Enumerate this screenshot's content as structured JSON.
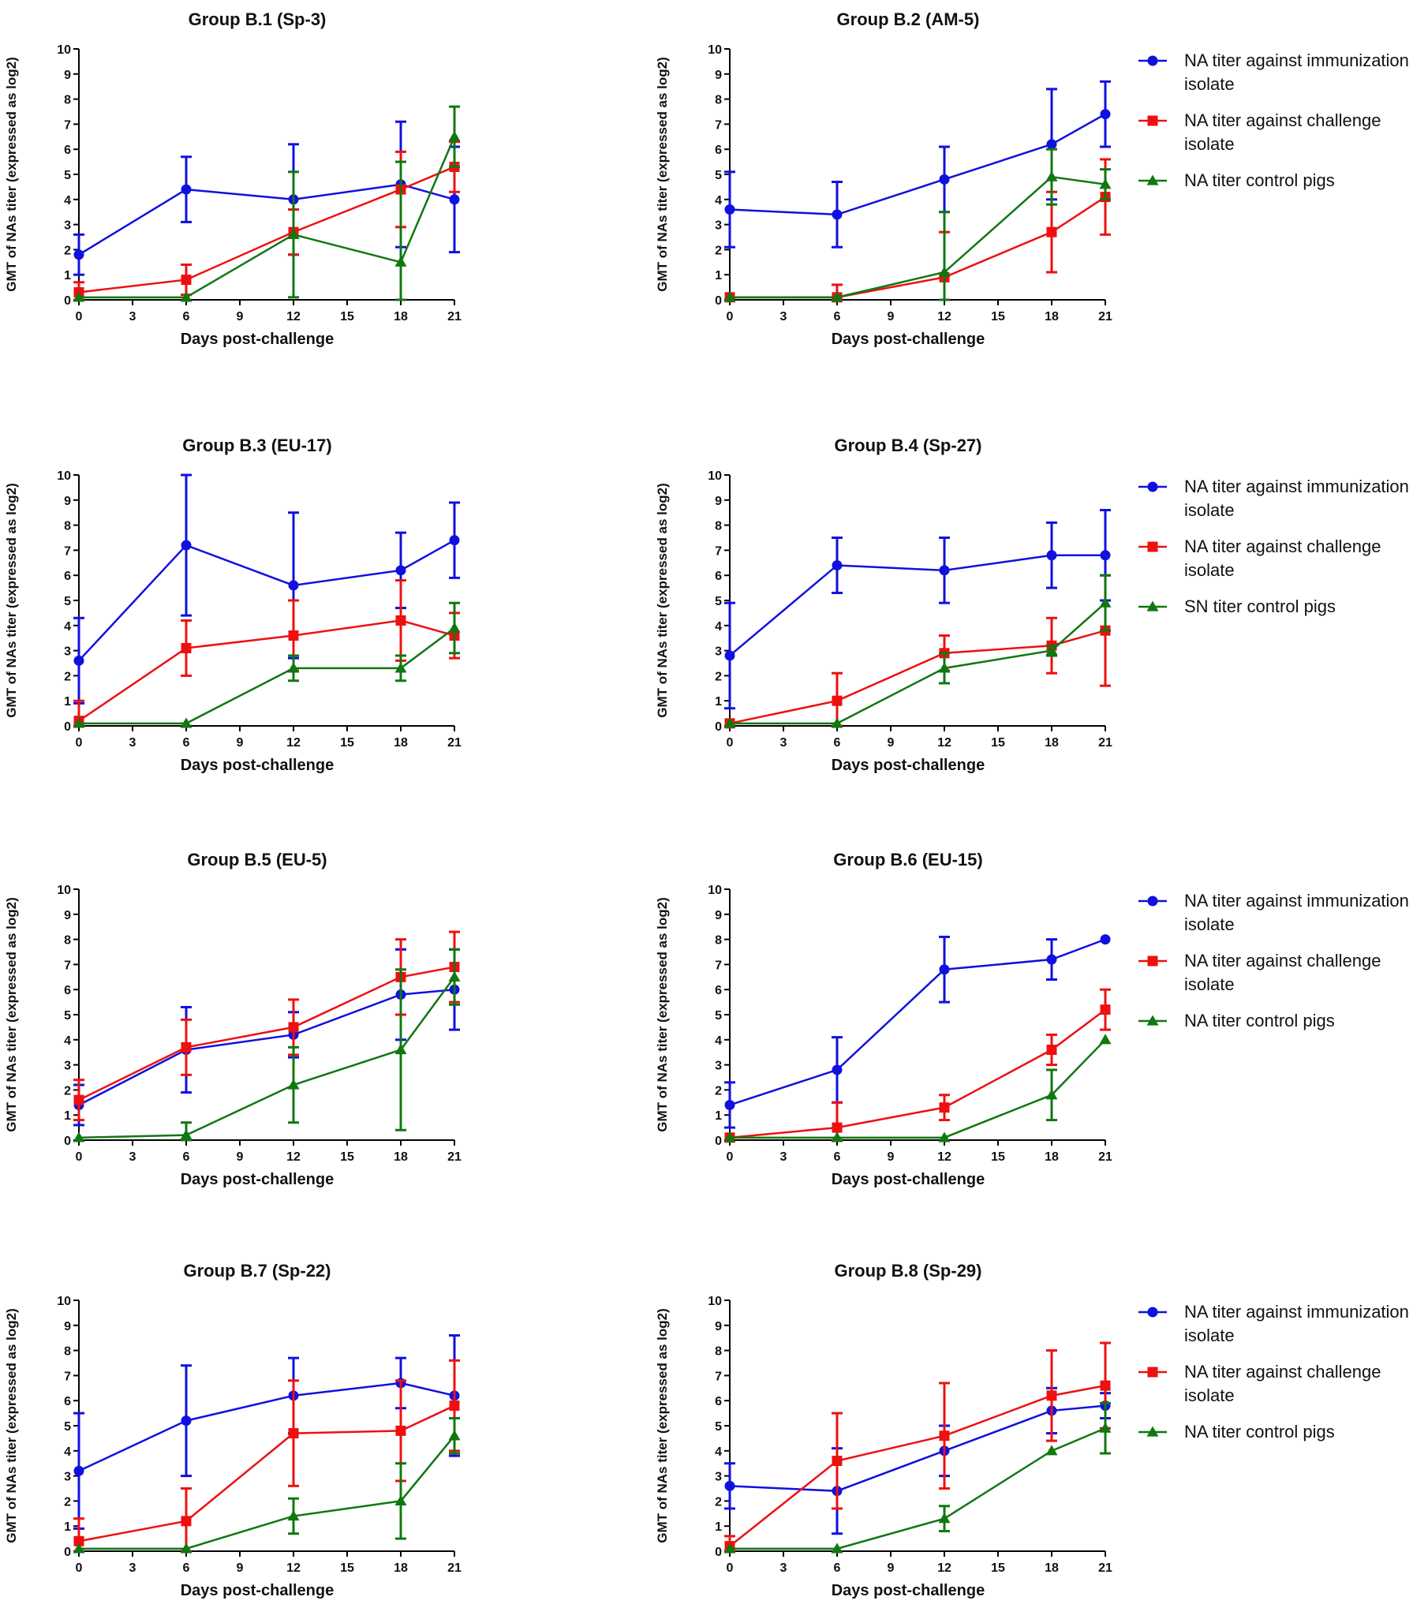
{
  "chart_data": [
    {
      "type": "line",
      "title": "Group B.1 (Sp-3)",
      "xlabel": "Days post-challenge",
      "ylabel": "GMT of NAs titer (expressed as log2)",
      "xlim": [
        0,
        21
      ],
      "ylim": [
        0,
        10
      ],
      "xticks": [
        0,
        3,
        6,
        9,
        12,
        15,
        18,
        21
      ],
      "yticks": [
        0,
        1,
        2,
        3,
        4,
        5,
        6,
        7,
        8,
        9,
        10
      ],
      "x": [
        0,
        6,
        12,
        18,
        21
      ],
      "legend": null,
      "series": [
        {
          "name": "immunization",
          "color": "#1010e0",
          "marker": "circle",
          "values": [
            1.8,
            4.4,
            4.0,
            4.6,
            4.0
          ],
          "errors": [
            0.8,
            1.3,
            2.2,
            2.5,
            2.1
          ]
        },
        {
          "name": "challenge",
          "color": "#ee1010",
          "marker": "square",
          "values": [
            0.3,
            0.8,
            2.7,
            4.4,
            5.3
          ],
          "errors": [
            0.4,
            0.6,
            0.9,
            1.5,
            1.0
          ]
        },
        {
          "name": "control",
          "color": "#117711",
          "marker": "triangle",
          "values": [
            0.1,
            0.1,
            2.6,
            1.5,
            6.5
          ],
          "errors": [
            0.0,
            0.0,
            2.5,
            4.0,
            1.2
          ]
        }
      ]
    },
    {
      "type": "line",
      "title": "Group B.2 (AM-5)",
      "xlabel": "Days post-challenge",
      "ylabel": "GMT of NAs titer (expressed as log2)",
      "xlim": [
        0,
        21
      ],
      "ylim": [
        0,
        10
      ],
      "xticks": [
        0,
        3,
        6,
        9,
        12,
        15,
        18,
        21
      ],
      "yticks": [
        0,
        1,
        2,
        3,
        4,
        5,
        6,
        7,
        8,
        9,
        10
      ],
      "x": [
        0,
        6,
        12,
        18,
        21
      ],
      "legend": [
        "NA titer against immunization isolate",
        "NA titer against challenge isolate",
        "NA titer control pigs"
      ],
      "series": [
        {
          "name": "NA titer against immunization isolate",
          "color": "#1010e0",
          "marker": "circle",
          "values": [
            3.6,
            3.4,
            4.8,
            6.2,
            7.4
          ],
          "errors": [
            1.5,
            1.3,
            1.3,
            2.2,
            1.3
          ]
        },
        {
          "name": "NA titer against challenge isolate",
          "color": "#ee1010",
          "marker": "square",
          "values": [
            0.1,
            0.1,
            0.9,
            2.7,
            4.1
          ],
          "errors": [
            0.0,
            0.5,
            1.8,
            1.6,
            1.5
          ]
        },
        {
          "name": "NA titer control pigs",
          "color": "#117711",
          "marker": "triangle",
          "values": [
            0.1,
            0.1,
            1.1,
            4.9,
            4.6
          ],
          "errors": [
            0.0,
            0.0,
            2.4,
            1.1,
            0.6
          ]
        }
      ]
    },
    {
      "type": "line",
      "title": "Group B.3 (EU-17)",
      "xlabel": "Days post-challenge",
      "ylabel": "GMT of NAs titer (expressed as log2)",
      "xlim": [
        0,
        21
      ],
      "ylim": [
        0,
        10
      ],
      "xticks": [
        0,
        3,
        6,
        9,
        12,
        15,
        18,
        21
      ],
      "yticks": [
        0,
        1,
        2,
        3,
        4,
        5,
        6,
        7,
        8,
        9,
        10
      ],
      "x": [
        0,
        6,
        12,
        18,
        21
      ],
      "legend": null,
      "series": [
        {
          "name": "immunization",
          "color": "#1010e0",
          "marker": "circle",
          "values": [
            2.6,
            7.2,
            5.6,
            6.2,
            7.4
          ],
          "errors": [
            1.7,
            2.8,
            2.9,
            1.5,
            1.5
          ]
        },
        {
          "name": "challenge",
          "color": "#ee1010",
          "marker": "square",
          "values": [
            0.2,
            3.1,
            3.6,
            4.2,
            3.6
          ],
          "errors": [
            0.8,
            1.1,
            1.4,
            1.6,
            0.9
          ]
        },
        {
          "name": "control",
          "color": "#117711",
          "marker": "triangle",
          "values": [
            0.1,
            0.1,
            2.3,
            2.3,
            3.9
          ],
          "errors": [
            0.0,
            0.0,
            0.5,
            0.5,
            1.0
          ]
        }
      ]
    },
    {
      "type": "line",
      "title": "Group B.4 (Sp-27)",
      "xlabel": "Days post-challenge",
      "ylabel": "GMT of NAs titer (expressed as log2)",
      "xlim": [
        0,
        21
      ],
      "ylim": [
        0,
        10
      ],
      "xticks": [
        0,
        3,
        6,
        9,
        12,
        15,
        18,
        21
      ],
      "yticks": [
        0,
        1,
        2,
        3,
        4,
        5,
        6,
        7,
        8,
        9,
        10
      ],
      "x": [
        0,
        6,
        12,
        18,
        21
      ],
      "legend": [
        "NA titer against immunization isolate",
        "NA titer against challenge isolate",
        "SN titer control pigs"
      ],
      "series": [
        {
          "name": "NA titer against immunization isolate",
          "color": "#1010e0",
          "marker": "circle",
          "values": [
            2.8,
            6.4,
            6.2,
            6.8,
            6.8
          ],
          "errors": [
            2.1,
            1.1,
            1.3,
            1.3,
            1.8
          ]
        },
        {
          "name": "NA titer against challenge isolate",
          "color": "#ee1010",
          "marker": "square",
          "values": [
            0.1,
            1.0,
            2.9,
            3.2,
            3.8
          ],
          "errors": [
            0.0,
            1.1,
            0.7,
            1.1,
            2.2
          ]
        },
        {
          "name": "SN titer control pigs",
          "color": "#117711",
          "marker": "triangle",
          "values": [
            0.1,
            0.1,
            2.3,
            3.0,
            4.9
          ],
          "errors": [
            0.0,
            0.0,
            0.6,
            0.2,
            1.1
          ]
        }
      ]
    },
    {
      "type": "line",
      "title": "Group B.5 (EU-5)",
      "xlabel": "Days post-challenge",
      "ylabel": "GMT of NAs titer (expressed as log2)",
      "xlim": [
        0,
        21
      ],
      "ylim": [
        0,
        10
      ],
      "xticks": [
        0,
        3,
        6,
        9,
        12,
        15,
        18,
        21
      ],
      "yticks": [
        0,
        1,
        2,
        3,
        4,
        5,
        6,
        7,
        8,
        9,
        10
      ],
      "x": [
        0,
        6,
        12,
        18,
        21
      ],
      "legend": null,
      "series": [
        {
          "name": "immunization",
          "color": "#1010e0",
          "marker": "circle",
          "values": [
            1.4,
            3.6,
            4.2,
            5.8,
            6.0
          ],
          "errors": [
            0.8,
            1.7,
            0.9,
            1.8,
            1.6
          ]
        },
        {
          "name": "challenge",
          "color": "#ee1010",
          "marker": "square",
          "values": [
            1.6,
            3.7,
            4.5,
            6.5,
            6.9
          ],
          "errors": [
            0.8,
            1.1,
            1.1,
            1.5,
            1.4
          ]
        },
        {
          "name": "control",
          "color": "#117711",
          "marker": "triangle",
          "values": [
            0.1,
            0.2,
            2.2,
            3.6,
            6.5
          ],
          "errors": [
            0.0,
            0.5,
            1.5,
            3.2,
            1.1
          ]
        }
      ]
    },
    {
      "type": "line",
      "title": "Group B.6 (EU-15)",
      "xlabel": "Days post-challenge",
      "ylabel": "GMT of NAs titer (expressed as log2)",
      "xlim": [
        0,
        21
      ],
      "ylim": [
        0,
        10
      ],
      "xticks": [
        0,
        3,
        6,
        9,
        12,
        15,
        18,
        21
      ],
      "yticks": [
        0,
        1,
        2,
        3,
        4,
        5,
        6,
        7,
        8,
        9,
        10
      ],
      "x": [
        0,
        6,
        12,
        18,
        21
      ],
      "legend": [
        "NA titer against immunization isolate",
        "NA titer against challenge isolate",
        "NA titer control pigs"
      ],
      "series": [
        {
          "name": "NA titer against immunization isolate",
          "color": "#1010e0",
          "marker": "circle",
          "values": [
            1.4,
            2.8,
            6.8,
            7.2,
            8.0
          ],
          "errors": [
            0.9,
            1.3,
            1.3,
            0.8,
            0.0
          ]
        },
        {
          "name": "NA titer against challenge isolate",
          "color": "#ee1010",
          "marker": "square",
          "values": [
            0.1,
            0.5,
            1.3,
            3.6,
            5.2
          ],
          "errors": [
            0.0,
            1.0,
            0.5,
            0.6,
            0.8
          ]
        },
        {
          "name": "NA titer control pigs",
          "color": "#117711",
          "marker": "triangle",
          "values": [
            0.1,
            0.1,
            0.1,
            1.8,
            4.0
          ],
          "errors": [
            0.0,
            0.0,
            0.0,
            1.0,
            0.0
          ]
        }
      ]
    },
    {
      "type": "line",
      "title": "Group B.7 (Sp-22)",
      "xlabel": "Days post-challenge",
      "ylabel": "GMT of NAs titer (expressed as log2)",
      "xlim": [
        0,
        21
      ],
      "ylim": [
        0,
        10
      ],
      "xticks": [
        0,
        3,
        6,
        9,
        12,
        15,
        18,
        21
      ],
      "yticks": [
        0,
        1,
        2,
        3,
        4,
        5,
        6,
        7,
        8,
        9,
        10
      ],
      "x": [
        0,
        6,
        12,
        18,
        21
      ],
      "legend": null,
      "series": [
        {
          "name": "immunization",
          "color": "#1010e0",
          "marker": "circle",
          "values": [
            3.2,
            5.2,
            6.2,
            6.7,
            6.2
          ],
          "errors": [
            2.3,
            2.2,
            1.5,
            1.0,
            2.4
          ]
        },
        {
          "name": "challenge",
          "color": "#ee1010",
          "marker": "square",
          "values": [
            0.4,
            1.2,
            4.7,
            4.8,
            5.8
          ],
          "errors": [
            0.9,
            1.3,
            2.1,
            2.0,
            1.8
          ]
        },
        {
          "name": "control",
          "color": "#117711",
          "marker": "triangle",
          "values": [
            0.1,
            0.1,
            1.4,
            2.0,
            4.6
          ],
          "errors": [
            0.0,
            0.0,
            0.7,
            1.5,
            0.7
          ]
        }
      ]
    },
    {
      "type": "line",
      "title": "Group B.8 (Sp-29)",
      "xlabel": "Days post-challenge",
      "ylabel": "GMT of NAs titer (expressed as log2)",
      "xlim": [
        0,
        21
      ],
      "ylim": [
        0,
        10
      ],
      "xticks": [
        0,
        3,
        6,
        9,
        12,
        15,
        18,
        21
      ],
      "yticks": [
        0,
        1,
        2,
        3,
        4,
        5,
        6,
        7,
        8,
        9,
        10
      ],
      "x": [
        0,
        6,
        12,
        18,
        21
      ],
      "legend": [
        "NA titer against immunization isolate",
        "NA titer against challenge isolate",
        "NA titer control pigs"
      ],
      "series": [
        {
          "name": "NA titer against immunization isolate",
          "color": "#1010e0",
          "marker": "circle",
          "values": [
            2.6,
            2.4,
            4.0,
            5.6,
            5.8
          ],
          "errors": [
            0.9,
            1.7,
            1.0,
            0.9,
            0.5
          ]
        },
        {
          "name": "NA titer against challenge isolate",
          "color": "#ee1010",
          "marker": "square",
          "values": [
            0.2,
            3.6,
            4.6,
            6.2,
            6.6
          ],
          "errors": [
            0.4,
            1.9,
            2.1,
            1.8,
            1.7
          ]
        },
        {
          "name": "NA titer control pigs",
          "color": "#117711",
          "marker": "triangle",
          "values": [
            0.1,
            0.1,
            1.3,
            4.0,
            4.9
          ],
          "errors": [
            0.0,
            0.0,
            0.5,
            0.0,
            1.0
          ]
        }
      ]
    }
  ]
}
